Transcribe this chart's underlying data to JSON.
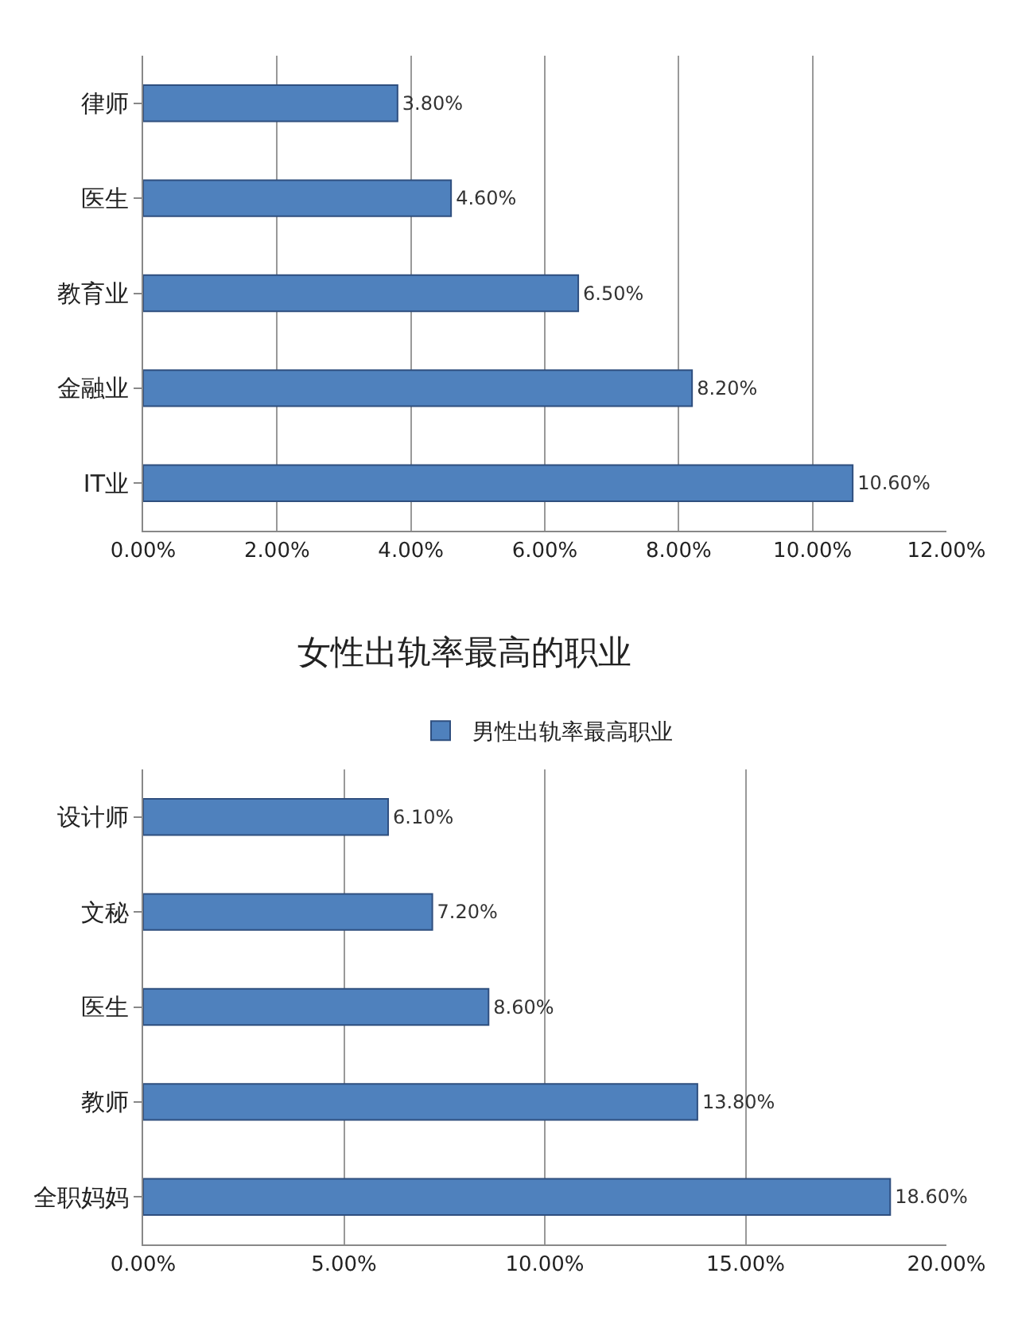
{
  "chart_data": [
    {
      "type": "bar",
      "orientation": "horizontal",
      "categories": [
        "律师",
        "医生",
        "教育业",
        "金融业",
        "IT业"
      ],
      "values": [
        3.8,
        4.6,
        6.5,
        8.2,
        10.6
      ],
      "value_labels": [
        "3.80%",
        "4.60%",
        "6.50%",
        "8.20%",
        "10.60%"
      ],
      "color": "#4f81bd",
      "xlim": [
        0,
        12
      ],
      "xticks": [
        {
          "value": 0,
          "label": "0.00%"
        },
        {
          "value": 2,
          "label": "2.00%"
        },
        {
          "value": 4,
          "label": "4.00%"
        },
        {
          "value": 6,
          "label": "6.00%"
        },
        {
          "value": 8,
          "label": "8.00%"
        },
        {
          "value": 10,
          "label": "10.00%"
        },
        {
          "value": 12,
          "label": "12.00%"
        }
      ],
      "grid": "x"
    },
    {
      "type": "bar",
      "orientation": "horizontal",
      "title": "女性出轨率最高的职业",
      "categories": [
        "设计师",
        "文秘",
        "医生",
        "教师",
        "全职妈妈"
      ],
      "series": [
        {
          "name": "男性出轨率最高职业",
          "color": "#4f81bd",
          "values": [
            6.1,
            7.2,
            8.6,
            13.8,
            18.6
          ],
          "value_labels": [
            "6.10%",
            "7.20%",
            "8.60%",
            "13.80%",
            "18.60%"
          ]
        }
      ],
      "xlim": [
        0,
        20
      ],
      "xticks": [
        {
          "value": 0,
          "label": "0.00%"
        },
        {
          "value": 5,
          "label": "5.00%"
        },
        {
          "value": 10,
          "label": "10.00%"
        },
        {
          "value": 15,
          "label": "15.00%"
        },
        {
          "value": 20,
          "label": "20.00%"
        }
      ],
      "grid": "x",
      "legend": "top"
    }
  ]
}
